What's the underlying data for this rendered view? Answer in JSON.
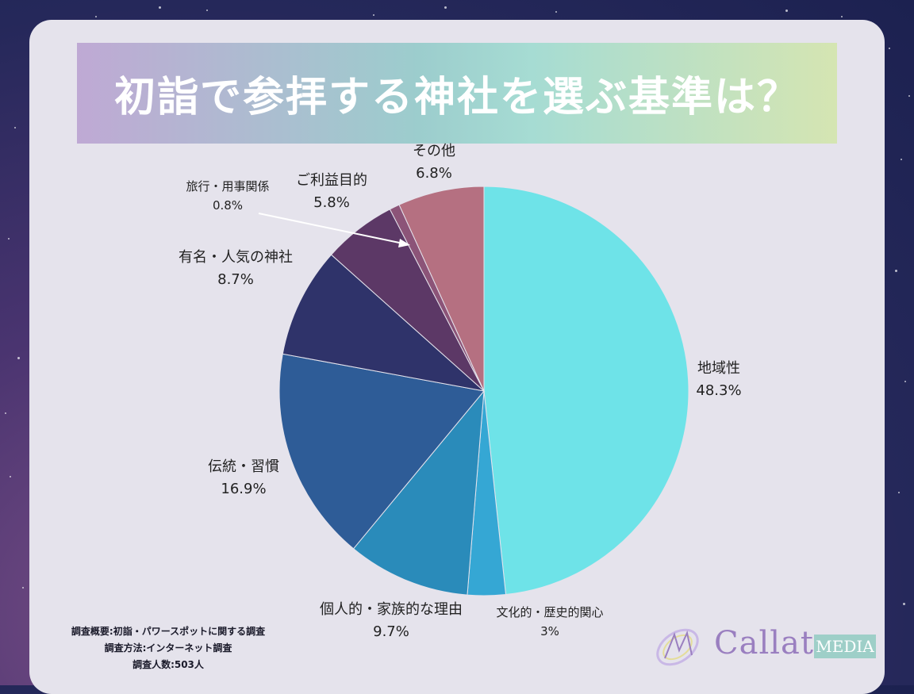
{
  "title": "初詣で参拝する神社を選ぶ基準は？",
  "chart_data": {
    "type": "pie",
    "title": "初詣で参拝する神社を選ぶ基準は？",
    "unit": "%",
    "slices": [
      {
        "name": "地域性",
        "value": 48.3,
        "label": "48.3%",
        "color": "#6ee3e8"
      },
      {
        "name": "文化的・歴史的関心",
        "value": 3,
        "label": "3%",
        "color": "#35a7d4"
      },
      {
        "name": "個人的・家族的な理由",
        "value": 9.7,
        "label": "9.7%",
        "color": "#2a8bba"
      },
      {
        "name": "伝統・習慣",
        "value": 16.9,
        "label": "16.9%",
        "color": "#2e5c97"
      },
      {
        "name": "有名・人気の神社",
        "value": 8.7,
        "label": "8.7%",
        "color": "#2f336a"
      },
      {
        "name": "ご利益目的",
        "value": 5.8,
        "label": "5.8%",
        "color": "#5c3866"
      },
      {
        "name": "旅行・用事関係",
        "value": 0.8,
        "label": "0.8%",
        "color": "#8c5478"
      },
      {
        "name": "その他",
        "value": 6.8,
        "label": "6.8%",
        "color": "#b57081"
      }
    ]
  },
  "footnote": {
    "line1": "調査概要:初詣・パワースポットに関する調査",
    "line2": "調査方法:インターネット調査",
    "line3": "調査人数:503人"
  },
  "logo": {
    "word": "Callat",
    "badge": "MEDIA"
  }
}
